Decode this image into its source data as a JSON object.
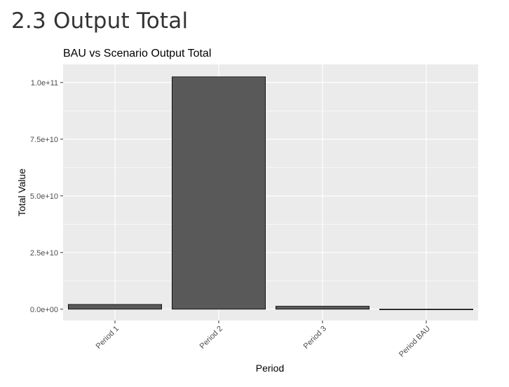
{
  "page": {
    "heading": "2.3 Output Total"
  },
  "chart_data": {
    "type": "bar",
    "title": "BAU vs Scenario Output Total",
    "xlabel": "Period",
    "ylabel": "Total Value",
    "categories": [
      "Period 1",
      "Period 2",
      "Period 3",
      "Period BAU"
    ],
    "values": [
      2100000000,
      102500000000,
      1300000000,
      0
    ],
    "ylim": [
      -5000000000,
      108000000000
    ],
    "yticks": [
      0,
      25000000000,
      50000000000,
      75000000000,
      100000000000
    ],
    "ytick_labels": [
      "0.0e+00",
      "2.5e+10",
      "5.0e+10",
      "7.5e+10",
      "1.0e+11"
    ],
    "grid": true,
    "legend": "none",
    "colors": {
      "bar_fill": "#595959",
      "bar_stroke": "#000000",
      "panel": "#ebebeb",
      "grid": "#ffffff"
    }
  }
}
